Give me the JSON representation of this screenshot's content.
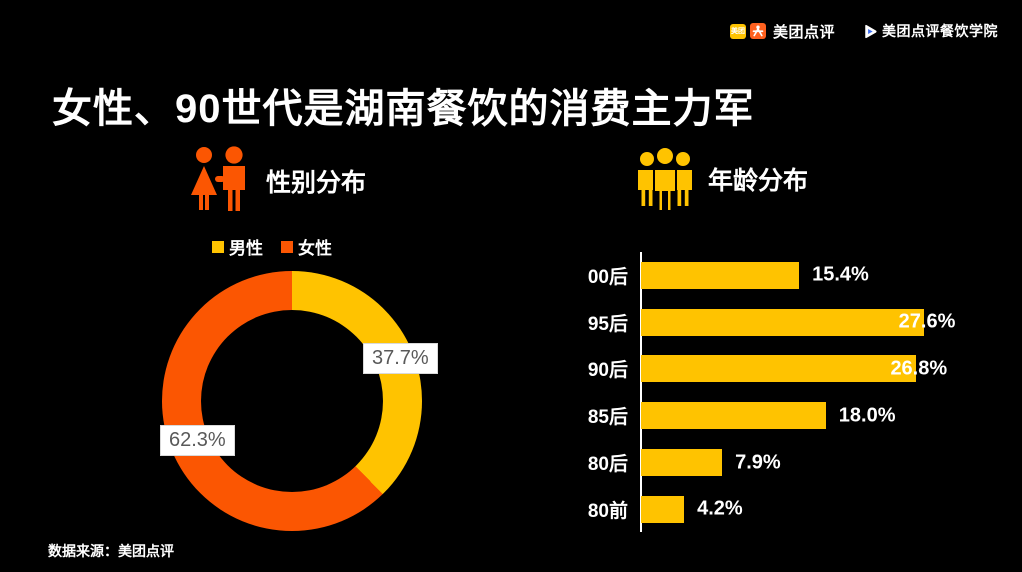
{
  "header": {
    "meituan_logo": {
      "badge_text": "美团",
      "brand_text": "美团点评"
    },
    "academy_logo": {
      "text": "美团点评餐饮学院"
    }
  },
  "title": "女性、90世代是湖南餐饮的消费主力军",
  "source": "数据来源：美团点评",
  "colors": {
    "yellow": "#FFC300",
    "orange": "#FB5602",
    "background": "#000000",
    "label_text": "#595959",
    "label_border": "#D9D9D9"
  },
  "gender_section": {
    "heading": "性别分布",
    "legend": [
      {
        "label": "男性",
        "color": "#FFC300"
      },
      {
        "label": "女性",
        "color": "#FB5602"
      }
    ]
  },
  "age_section": {
    "heading": "年龄分布"
  },
  "chart_data": [
    {
      "type": "pie",
      "subtype": "donut",
      "title": "性别分布",
      "labels": [
        "男性",
        "女性"
      ],
      "values": [
        37.7,
        62.3
      ],
      "value_labels": [
        "37.7%",
        "62.3%"
      ],
      "colors": [
        "#FFC300",
        "#FB5602"
      ],
      "start_angle_deg": 0,
      "direction": "clockwise",
      "legend_position": "top"
    },
    {
      "type": "bar",
      "orientation": "horizontal",
      "title": "年龄分布",
      "categories": [
        "00后",
        "95后",
        "90后",
        "85后",
        "80后",
        "80前"
      ],
      "values": [
        15.4,
        27.6,
        26.8,
        18.0,
        7.9,
        4.2
      ],
      "value_labels": [
        "15.4%",
        "27.6%",
        "26.8%",
        "18.0%",
        "7.9%",
        "4.2%"
      ],
      "label_inside": [
        false,
        true,
        true,
        false,
        false,
        false
      ],
      "bar_color": "#FFC300",
      "xlim": [
        0,
        30
      ],
      "grid": false
    }
  ]
}
